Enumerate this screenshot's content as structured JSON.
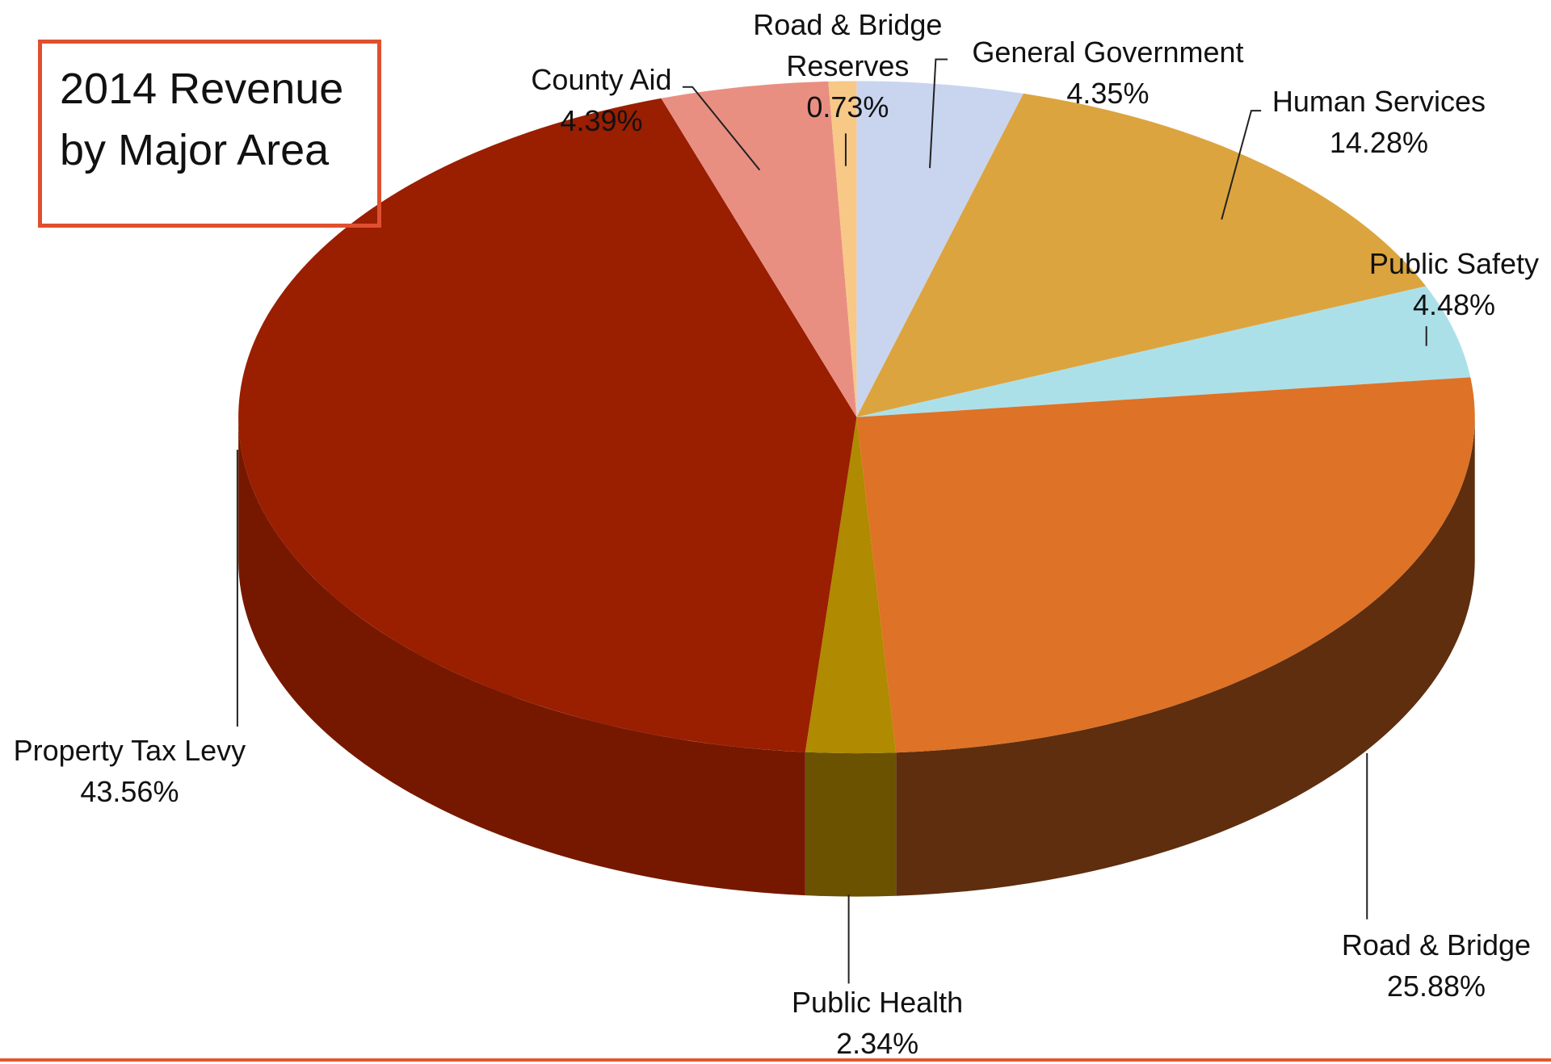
{
  "chart_data": {
    "type": "pie",
    "title": "2014 Revenue by Major Area",
    "categories": [
      "General Government",
      "Human Services",
      "Public Safety",
      "Road & Bridge",
      "Public Health",
      "Property Tax Levy",
      "County Aid",
      "Road & Bridge Reserves"
    ],
    "values": [
      4.35,
      14.28,
      4.48,
      25.88,
      2.34,
      43.56,
      4.39,
      0.73
    ],
    "value_labels": [
      "4.35%",
      "14.28%",
      "4.48%",
      "25.88%",
      "2.34%",
      "43.56%",
      "4.39%",
      "0.73%"
    ],
    "colors": [
      "#c9d5ef",
      "#dca43f",
      "#ace0e9",
      "#de7226",
      "#b08a00",
      "#9a1e00",
      "#e98f82",
      "#f8c887"
    ],
    "side_colors": [
      "#8c95a8",
      "#9a722c",
      "#78a0a6",
      "#5e2e0e",
      "#6a5200",
      "#761800",
      "#a3645b",
      "#ad8c5e"
    ]
  }
}
